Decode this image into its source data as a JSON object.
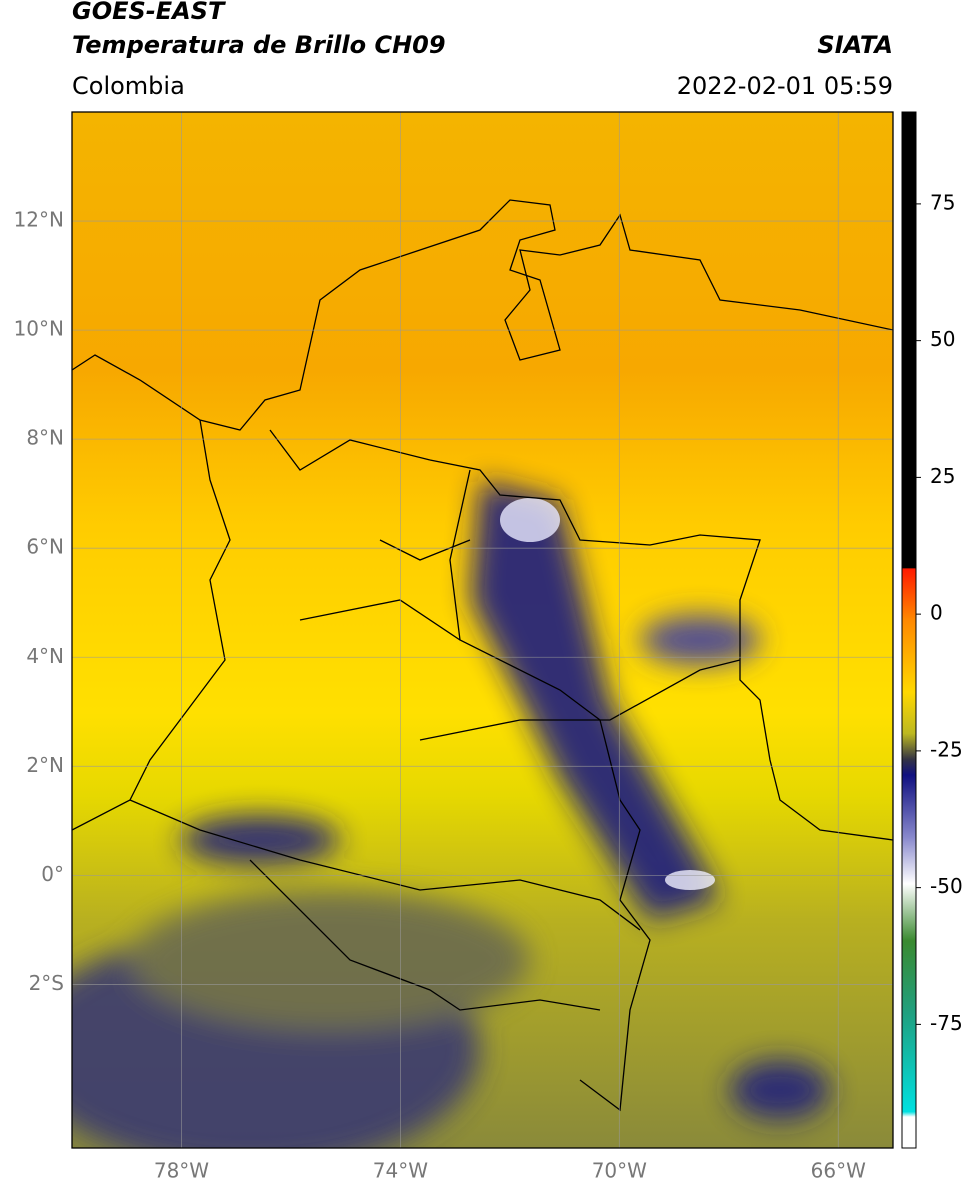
{
  "header": {
    "title": "GOES-EAST",
    "subtitle": "Temperatura de Brillo CH09",
    "source": "SIATA",
    "region": "Colombia",
    "datetime": "2022-02-01 05:59"
  },
  "map": {
    "xlim": [
      -80,
      -65
    ],
    "ylim": [
      -5,
      14
    ],
    "xticks": [
      {
        "value": -78,
        "label": "78°W"
      },
      {
        "value": -74,
        "label": "74°W"
      },
      {
        "value": -70,
        "label": "70°W"
      },
      {
        "value": -66,
        "label": "66°W"
      }
    ],
    "yticks": [
      {
        "value": 12,
        "label": "12°N"
      },
      {
        "value": 10,
        "label": "10°N"
      },
      {
        "value": 8,
        "label": "8°N"
      },
      {
        "value": 6,
        "label": "6°N"
      },
      {
        "value": 4,
        "label": "4°N"
      },
      {
        "value": 2,
        "label": "2°N"
      },
      {
        "value": 0,
        "label": "0°"
      },
      {
        "value": -2,
        "label": "2°S"
      }
    ]
  },
  "colorbar": {
    "lim": [
      -97.6,
      91.8
    ],
    "ticks": [
      75,
      50,
      25,
      0,
      -25,
      -50,
      -75
    ]
  }
}
